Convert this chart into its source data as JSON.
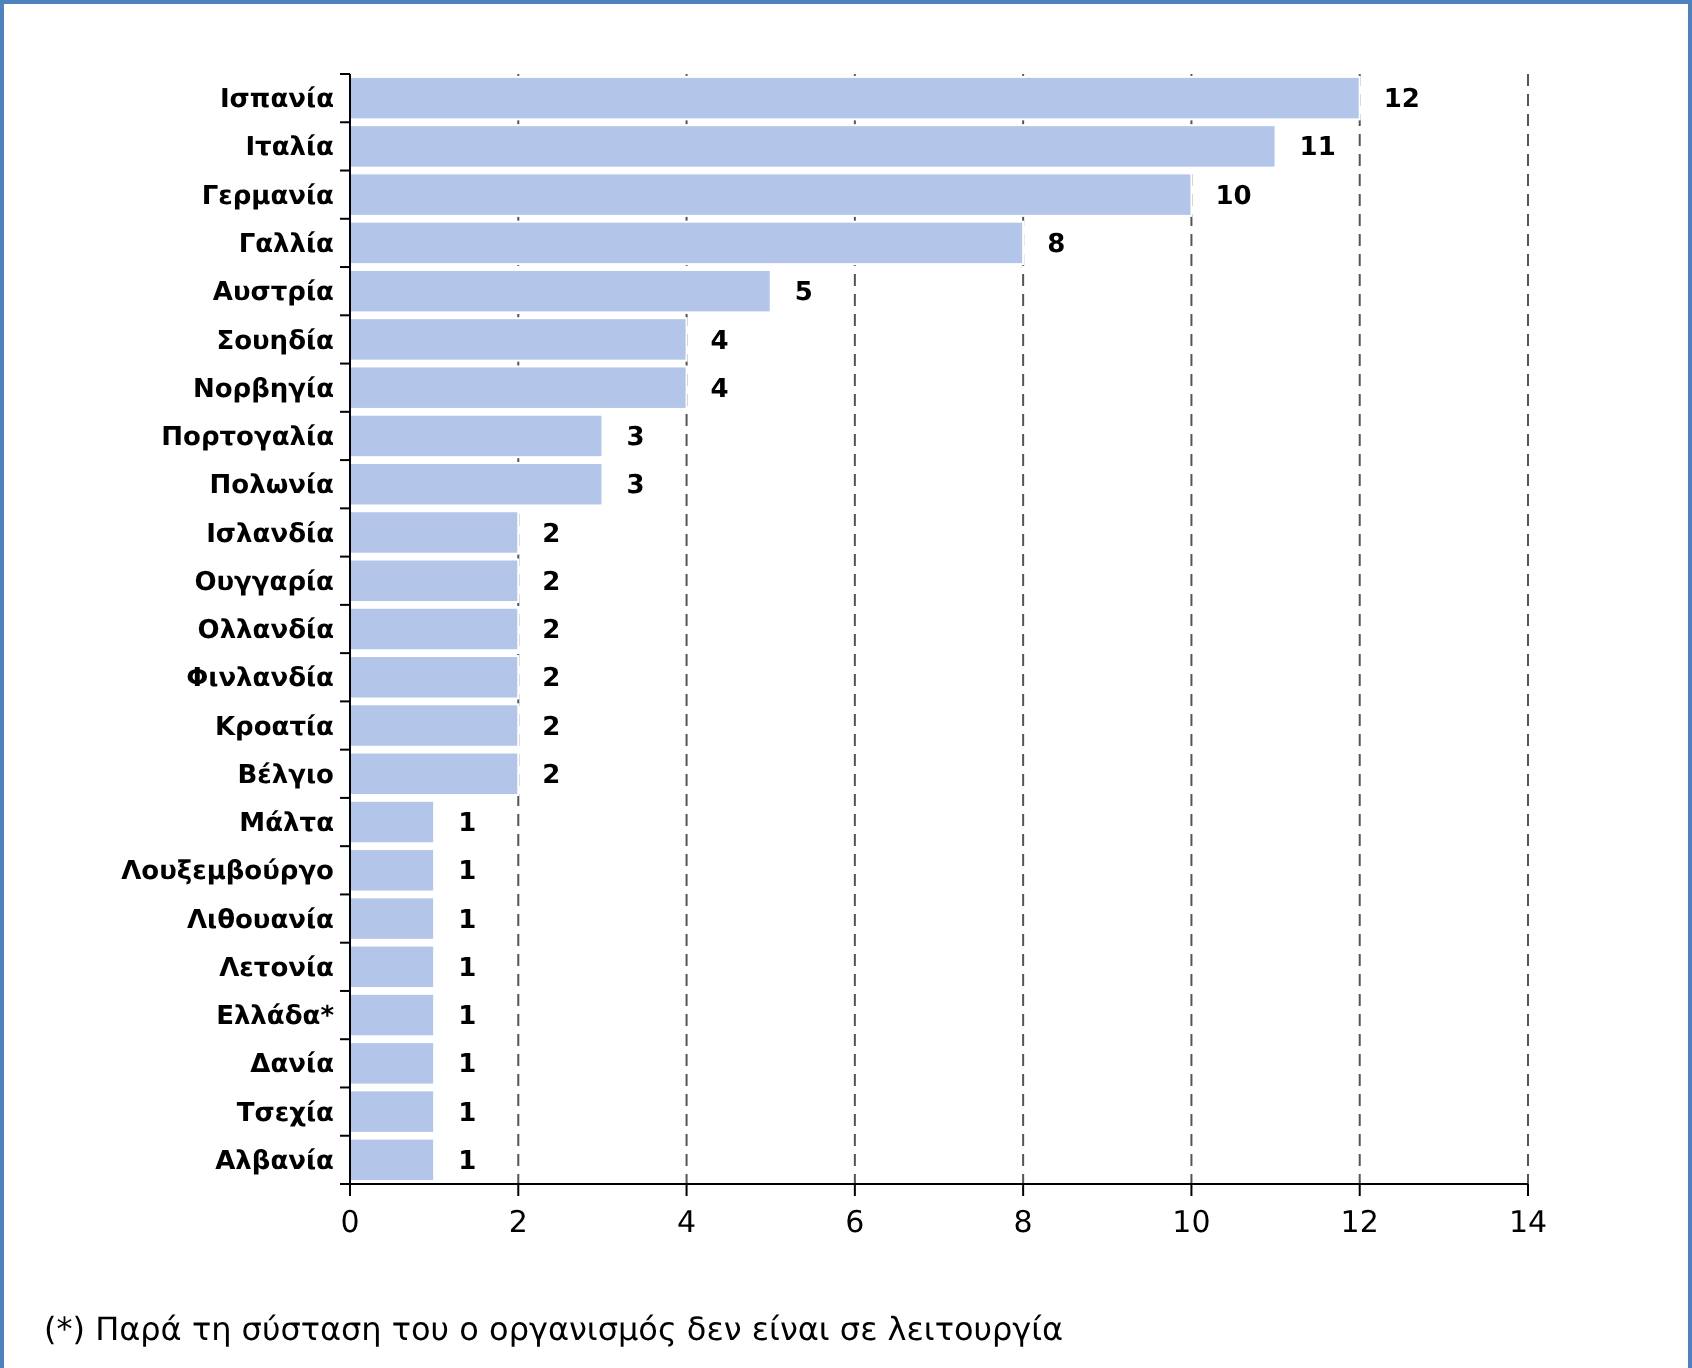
{
  "chart_data": {
    "type": "bar",
    "orientation": "horizontal",
    "categories": [
      "Ισπανία",
      "Ιταλία",
      "Γερμανία",
      "Γαλλία",
      "Αυστρία",
      "Σουηδία",
      "Νορβηγία",
      "Πορτογαλία",
      "Πολωνία",
      "Ισλανδία",
      "Ουγγαρία",
      "Ολλανδία",
      "Φινλανδία",
      "Κροατία",
      "Βέλγιο",
      "Μάλτα",
      "Λουξεμβούργο",
      "Λιθουανία",
      "Λετονία",
      "Ελλάδα*",
      "Δανία",
      "Τσεχία",
      "Αλβανία"
    ],
    "values": [
      12,
      11,
      10,
      8,
      5,
      4,
      4,
      3,
      3,
      2,
      2,
      2,
      2,
      2,
      2,
      1,
      1,
      1,
      1,
      1,
      1,
      1,
      1
    ],
    "color": "#b3c5e8",
    "xlim": [
      0,
      14
    ],
    "xticks": [
      0,
      2,
      4,
      6,
      8,
      10,
      12,
      14
    ],
    "grid": "x",
    "data_labels": true,
    "annotations": [
      "(*) Παρά τη σύσταση του ο οργανισμός δεν είναι σε λειτουργία"
    ]
  }
}
